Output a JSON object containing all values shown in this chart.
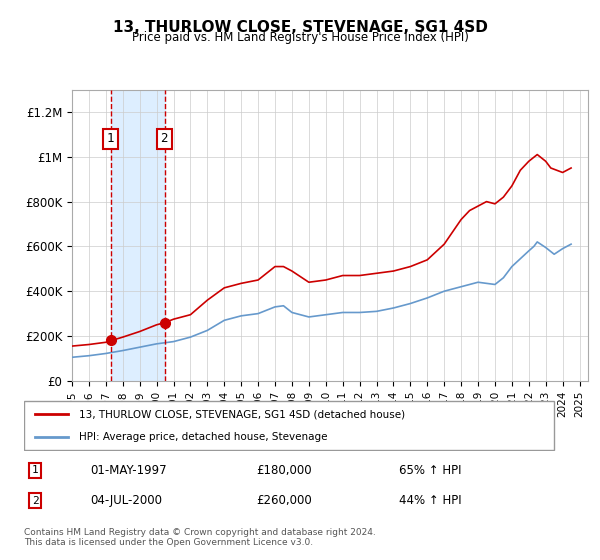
{
  "title": "13, THURLOW CLOSE, STEVENAGE, SG1 4SD",
  "subtitle": "Price paid vs. HM Land Registry's House Price Index (HPI)",
  "xlabel": "",
  "ylabel": "",
  "ylim": [
    0,
    1300000
  ],
  "xlim": [
    1995.0,
    2025.5
  ],
  "yticks": [
    0,
    200000,
    400000,
    600000,
    800000,
    1000000,
    1200000
  ],
  "ytick_labels": [
    "£0",
    "£200K",
    "£400K",
    "£600K",
    "£800K",
    "£1M",
    "£1.2M"
  ],
  "xticks": [
    1995,
    1996,
    1997,
    1998,
    1999,
    2000,
    2001,
    2002,
    2003,
    2004,
    2005,
    2006,
    2007,
    2008,
    2009,
    2010,
    2011,
    2012,
    2013,
    2014,
    2015,
    2016,
    2017,
    2018,
    2019,
    2020,
    2021,
    2022,
    2023,
    2024,
    2025
  ],
  "sale1_x": 1997.33,
  "sale1_y": 180000,
  "sale1_label": "1",
  "sale1_date": "01-MAY-1997",
  "sale1_price": "£180,000",
  "sale1_hpi": "65% ↑ HPI",
  "sale2_x": 2000.5,
  "sale2_y": 260000,
  "sale2_label": "2",
  "sale2_date": "04-JUL-2000",
  "sale2_price": "£260,000",
  "sale2_hpi": "44% ↑ HPI",
  "red_line_color": "#cc0000",
  "blue_line_color": "#6699cc",
  "shading_color": "#ddeeff",
  "dashed_line_color": "#cc0000",
  "legend_label_red": "13, THURLOW CLOSE, STEVENAGE, SG1 4SD (detached house)",
  "legend_label_blue": "HPI: Average price, detached house, Stevenage",
  "footer_text": "Contains HM Land Registry data © Crown copyright and database right 2024.\nThis data is licensed under the Open Government Licence v3.0.",
  "background_color": "#f8f8f8",
  "grid_color": "#cccccc"
}
